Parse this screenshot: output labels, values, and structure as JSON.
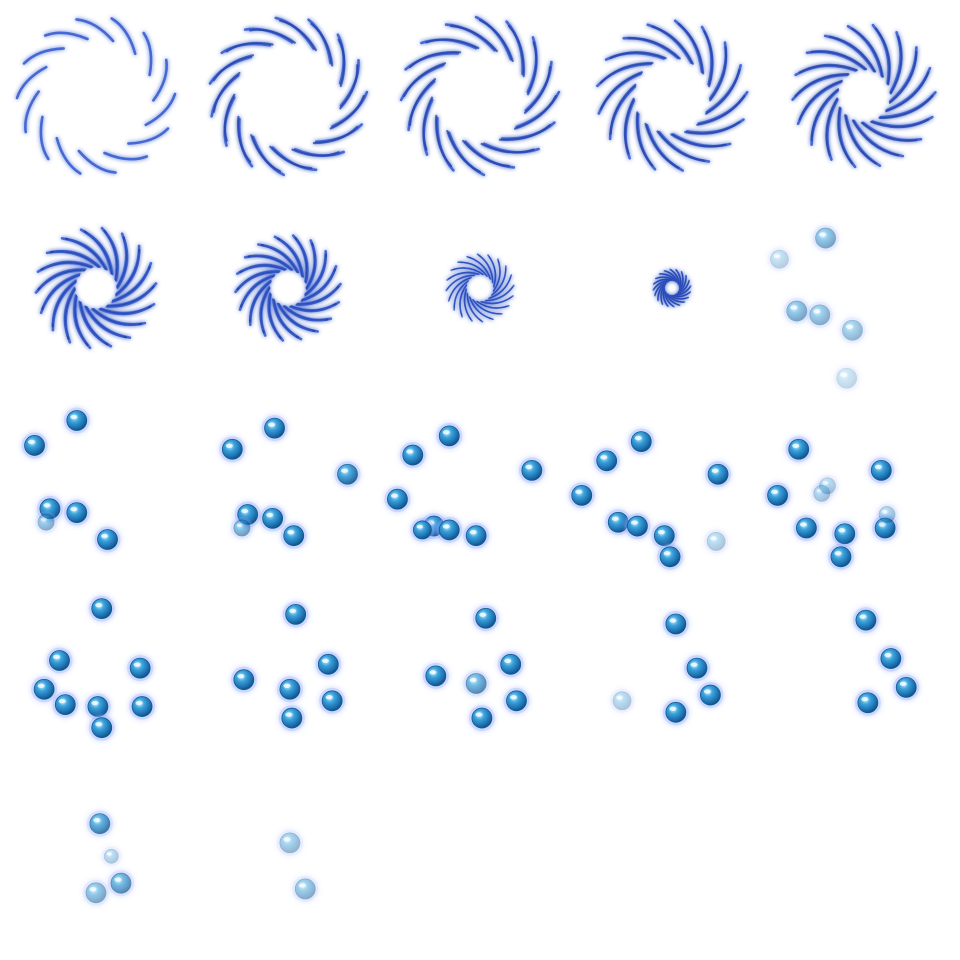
{
  "sprite_sheet": {
    "columns": 5,
    "rows": 5,
    "background": "#ffffff",
    "colors": {
      "streak": "#3a5fd0",
      "streak_dark": "#1f3fa8",
      "glow": "#8fa8ff",
      "orb": "#2f8fd0",
      "orb_light": "#9fdcff",
      "orb_dark": "#145a92"
    },
    "frames": [
      {
        "index": 1,
        "kind": "vortex",
        "streaks": 14,
        "radius_frac": 0.42,
        "hole_frac": 0.3,
        "curl": 0.55,
        "density": 0.8
      },
      {
        "index": 2,
        "kind": "vortex",
        "streaks": 15,
        "radius_frac": 0.42,
        "hole_frac": 0.28,
        "curl": 0.65,
        "density": 1.0
      },
      {
        "index": 3,
        "kind": "vortex",
        "streaks": 16,
        "radius_frac": 0.42,
        "hole_frac": 0.25,
        "curl": 0.75,
        "density": 1.2
      },
      {
        "index": 4,
        "kind": "vortex",
        "streaks": 17,
        "radius_frac": 0.4,
        "hole_frac": 0.2,
        "curl": 0.85,
        "density": 1.4
      },
      {
        "index": 5,
        "kind": "vortex",
        "streaks": 18,
        "radius_frac": 0.38,
        "hole_frac": 0.14,
        "curl": 0.95,
        "density": 1.6
      },
      {
        "index": 6,
        "kind": "vortex",
        "streaks": 18,
        "radius_frac": 0.32,
        "hole_frac": 0.09,
        "curl": 1.05,
        "density": 1.8
      },
      {
        "index": 7,
        "kind": "vortex",
        "streaks": 18,
        "radius_frac": 0.28,
        "hole_frac": 0.07,
        "curl": 1.1,
        "density": 1.8
      },
      {
        "index": 8,
        "kind": "vortex",
        "streaks": 20,
        "radius_frac": 0.18,
        "hole_frac": 0.0,
        "curl": 1.2,
        "density": 2.2
      },
      {
        "index": 9,
        "kind": "vortex",
        "streaks": 20,
        "radius_frac": 0.1,
        "hole_frac": 0.0,
        "curl": 1.2,
        "density": 2.6
      },
      {
        "index": 10,
        "kind": "bubbles",
        "orbs": [
          [
            0.3,
            0.24,
            10,
            0.55
          ],
          [
            0.06,
            0.35,
            9,
            0.3
          ],
          [
            0.15,
            0.62,
            10,
            0.55
          ],
          [
            0.27,
            0.64,
            10,
            0.5
          ],
          [
            0.44,
            0.72,
            10,
            0.45
          ],
          [
            0.41,
            0.97,
            10,
            0.25
          ]
        ]
      },
      {
        "index": 11,
        "kind": "bubbles",
        "orbs": [
          [
            0.4,
            0.19,
            10,
            1.0
          ],
          [
            0.18,
            0.32,
            10,
            1.0
          ],
          [
            0.26,
            0.65,
            10,
            1.0
          ],
          [
            0.4,
            0.67,
            10,
            1.0
          ],
          [
            0.56,
            0.81,
            10,
            1.0
          ],
          [
            0.24,
            0.72,
            8,
            0.5
          ]
        ]
      },
      {
        "index": 12,
        "kind": "bubbles",
        "orbs": [
          [
            0.43,
            0.23,
            10,
            1.0
          ],
          [
            0.21,
            0.34,
            10,
            1.0
          ],
          [
            0.81,
            0.47,
            10,
            0.9
          ],
          [
            0.29,
            0.68,
            10,
            1.0
          ],
          [
            0.42,
            0.7,
            10,
            1.0
          ],
          [
            0.53,
            0.79,
            10,
            1.0
          ],
          [
            0.26,
            0.75,
            8,
            0.6
          ]
        ]
      },
      {
        "index": 13,
        "kind": "bubbles",
        "orbs": [
          [
            0.34,
            0.27,
            10,
            1.0
          ],
          [
            0.15,
            0.37,
            10,
            1.0
          ],
          [
            0.77,
            0.45,
            10,
            1.0
          ],
          [
            0.07,
            0.6,
            10,
            1.0
          ],
          [
            0.26,
            0.74,
            10,
            1.0
          ],
          [
            0.34,
            0.76,
            10,
            1.0
          ],
          [
            0.48,
            0.79,
            10,
            1.0
          ],
          [
            0.2,
            0.76,
            9,
            1.0
          ]
        ]
      },
      {
        "index": 14,
        "kind": "bubbles",
        "orbs": [
          [
            0.34,
            0.3,
            10,
            1.0
          ],
          [
            0.16,
            0.4,
            10,
            1.0
          ],
          [
            0.74,
            0.47,
            10,
            1.0
          ],
          [
            0.03,
            0.58,
            10,
            1.0
          ],
          [
            0.22,
            0.72,
            10,
            1.0
          ],
          [
            0.32,
            0.74,
            10,
            1.0
          ],
          [
            0.46,
            0.79,
            10,
            1.0
          ],
          [
            0.49,
            0.9,
            10,
            1.0
          ],
          [
            0.73,
            0.82,
            9,
            0.35
          ]
        ]
      },
      {
        "index": 15,
        "kind": "bubbles",
        "orbs": [
          [
            0.16,
            0.34,
            10,
            1.0
          ],
          [
            0.59,
            0.45,
            10,
            1.0
          ],
          [
            0.05,
            0.58,
            10,
            1.0
          ],
          [
            0.2,
            0.75,
            10,
            1.0
          ],
          [
            0.4,
            0.78,
            10,
            1.0
          ],
          [
            0.61,
            0.75,
            10,
            1.0
          ],
          [
            0.38,
            0.9,
            10,
            1.0
          ],
          [
            0.62,
            0.68,
            8,
            0.4
          ],
          [
            0.28,
            0.57,
            8,
            0.4
          ],
          [
            0.31,
            0.53,
            8,
            0.35
          ]
        ]
      },
      {
        "index": 16,
        "kind": "bubbles",
        "orbs": [
          [
            0.53,
            0.17,
            10,
            1.0
          ],
          [
            0.31,
            0.44,
            10,
            1.0
          ],
          [
            0.73,
            0.48,
            10,
            1.0
          ],
          [
            0.23,
            0.59,
            10,
            1.0
          ],
          [
            0.34,
            0.67,
            10,
            1.0
          ],
          [
            0.51,
            0.68,
            10,
            1.0
          ],
          [
            0.74,
            0.68,
            10,
            1.0
          ],
          [
            0.53,
            0.79,
            10,
            1.0
          ]
        ]
      },
      {
        "index": 17,
        "kind": "bubbles",
        "orbs": [
          [
            0.54,
            0.2,
            10,
            1.0
          ],
          [
            0.71,
            0.46,
            10,
            1.0
          ],
          [
            0.27,
            0.54,
            10,
            1.0
          ],
          [
            0.51,
            0.59,
            10,
            1.0
          ],
          [
            0.73,
            0.65,
            10,
            1.0
          ],
          [
            0.52,
            0.74,
            10,
            1.0
          ]
        ]
      },
      {
        "index": 18,
        "kind": "bubbles",
        "orbs": [
          [
            0.53,
            0.22,
            10,
            1.0
          ],
          [
            0.66,
            0.46,
            10,
            1.0
          ],
          [
            0.27,
            0.52,
            10,
            1.0
          ],
          [
            0.48,
            0.56,
            10,
            0.7
          ],
          [
            0.69,
            0.65,
            10,
            1.0
          ],
          [
            0.51,
            0.74,
            10,
            1.0
          ]
        ]
      },
      {
        "index": 19,
        "kind": "bubbles",
        "orbs": [
          [
            0.52,
            0.25,
            10,
            1.0
          ],
          [
            0.63,
            0.48,
            10,
            1.0
          ],
          [
            0.24,
            0.65,
            9,
            0.35
          ],
          [
            0.7,
            0.62,
            10,
            1.0
          ],
          [
            0.52,
            0.71,
            10,
            1.0
          ]
        ]
      },
      {
        "index": 20,
        "kind": "bubbles",
        "orbs": [
          [
            0.51,
            0.23,
            10,
            1.0
          ],
          [
            0.64,
            0.43,
            10,
            1.0
          ],
          [
            0.72,
            0.58,
            10,
            1.0
          ],
          [
            0.52,
            0.66,
            10,
            1.0
          ]
        ]
      },
      {
        "index": 21,
        "kind": "bubbles",
        "orbs": [
          [
            0.52,
            0.29,
            10,
            0.8
          ],
          [
            0.63,
            0.6,
            10,
            0.7
          ],
          [
            0.5,
            0.65,
            10,
            0.55
          ],
          [
            0.58,
            0.46,
            7,
            0.35
          ]
        ]
      },
      {
        "index": 22,
        "kind": "bubbles",
        "orbs": [
          [
            0.51,
            0.39,
            10,
            0.45
          ],
          [
            0.59,
            0.63,
            10,
            0.5
          ]
        ]
      },
      {
        "index": 23,
        "kind": "empty"
      },
      {
        "index": 24,
        "kind": "empty"
      },
      {
        "index": 25,
        "kind": "empty"
      }
    ]
  }
}
